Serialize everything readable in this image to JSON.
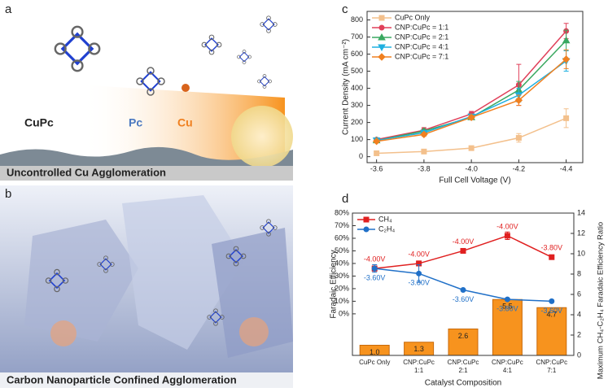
{
  "panels": {
    "a": {
      "label": "a",
      "caption": "Uncontrolled Cu Agglomeration",
      "labels": [
        "CuPc",
        "Pc",
        "Cu"
      ]
    },
    "b": {
      "label": "b",
      "caption": "Carbon Nanoparticle Confined Agglomeration"
    }
  },
  "chart_data": [
    {
      "type": "line",
      "panel_label": "c",
      "x_label": "Full Cell Voltage (V)",
      "y_label": "Current Density (mA cm⁻²)",
      "x": [
        -3.6,
        -3.8,
        -4.0,
        -4.2,
        -4.4
      ],
      "xlim": [
        -3.56,
        -4.47
      ],
      "xticks": [
        -3.6,
        -3.8,
        {
          "value": -4.0,
          "label": "-4.0"
        },
        -4.2,
        -4.4
      ],
      "ylim": [
        -35,
        850
      ],
      "yticks": [
        0,
        100,
        200,
        300,
        400,
        500,
        600,
        700,
        800
      ],
      "legend": "upper-left",
      "series": [
        {
          "name": "CuPc Only",
          "color": "#f3c08c",
          "marker": "square",
          "values": [
            20,
            30,
            50,
            110,
            225
          ],
          "errors": [
            5,
            5,
            10,
            25,
            55
          ]
        },
        {
          "name": "CNP:CuPc = 1:1",
          "color": "#e0405a",
          "marker": "circle",
          "values": [
            100,
            155,
            250,
            420,
            735
          ],
          "errors": [
            10,
            15,
            15,
            120,
            45
          ]
        },
        {
          "name": "CNP:CuPc = 2:1",
          "color": "#3aa860",
          "marker": "triangle-up",
          "values": [
            95,
            150,
            230,
            390,
            680
          ],
          "errors": [
            10,
            10,
            10,
            50,
            60
          ]
        },
        {
          "name": "CNP:CuPc = 4:1",
          "color": "#1fb0e0",
          "marker": "triangle-down",
          "values": [
            95,
            140,
            235,
            360,
            560
          ],
          "errors": [
            8,
            10,
            12,
            40,
            60
          ]
        },
        {
          "name": "CNP:CuPc = 7:1",
          "color": "#f08020",
          "marker": "diamond",
          "values": [
            90,
            130,
            230,
            330,
            570
          ],
          "errors": [
            8,
            10,
            12,
            30,
            55
          ]
        }
      ]
    },
    {
      "type": "bar_line",
      "panel_label": "d",
      "x_label": "Catalyst Composition",
      "y_label": "Faradaic Efficiency",
      "y2_label": "Maximum CH₄-C₂H₄ Faradaic Efficiency Ratio",
      "categories": [
        "CuPc Only",
        "CNP:CuPc\n1:1",
        "CNP:CuPc\n2:1",
        "CNP:CuPc\n4:1",
        "CNP:CuPc\n7:1"
      ],
      "ylim": [
        -33,
        80
      ],
      "yticks": [
        {
          "value": 0,
          "label": "0%"
        },
        {
          "value": 10,
          "label": "10%"
        },
        {
          "value": 20,
          "label": "20%"
        },
        {
          "value": 30,
          "label": "30%"
        },
        {
          "value": 40,
          "label": "40%"
        },
        {
          "value": 50,
          "label": "50%"
        },
        {
          "value": 60,
          "label": "60%"
        },
        {
          "value": 70,
          "label": "70%"
        },
        {
          "value": 80,
          "label": "80%"
        }
      ],
      "y2lim": [
        0,
        14
      ],
      "y2ticks": [
        0,
        2,
        4,
        6,
        8,
        10,
        12,
        14
      ],
      "legend": "upper-left",
      "series": [
        {
          "name": "Ratio",
          "type": "bar",
          "axis": "y2",
          "color": "#f7931e",
          "values": [
            1.0,
            1.3,
            2.6,
            5.5,
            4.7
          ],
          "value_labels": [
            "1.0",
            "1.3",
            "2.6",
            "5.5",
            "4.7"
          ]
        },
        {
          "name": "CH₄",
          "type": "line",
          "axis": "y",
          "color": "#e02020",
          "marker": "square",
          "label_position": "above",
          "values": [
            36,
            40,
            50,
            62,
            45
          ],
          "errors": [
            2,
            2,
            1,
            3,
            1.5
          ],
          "point_labels": [
            "-4.00V",
            "-4.00V",
            "-4.00V",
            "-4.00V",
            "-3.80V"
          ]
        },
        {
          "name": "C₂H₄",
          "type": "line",
          "axis": "y",
          "color": "#2070c8",
          "marker": "circle",
          "label_position": "below",
          "values": [
            36,
            32,
            19,
            11.5,
            10
          ],
          "errors": [
            3,
            7,
            0.5,
            1,
            1
          ],
          "point_labels": [
            "-3.60V",
            "-3.80V",
            "-3.60V",
            "-3.80V",
            "-3.60V"
          ]
        }
      ]
    }
  ]
}
